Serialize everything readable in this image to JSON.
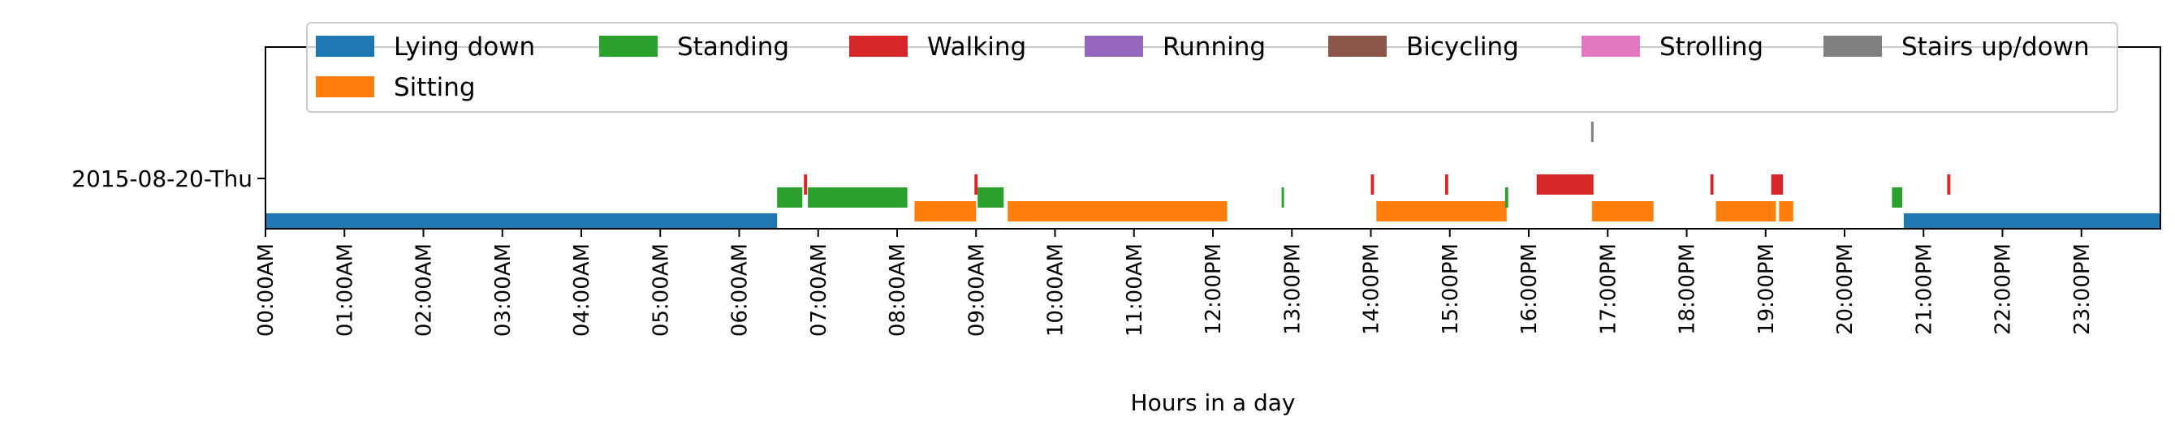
{
  "chart_data": {
    "type": "timeline",
    "xlabel": "Hours in a day",
    "xlim": [
      0,
      24
    ],
    "x_tick_labels": [
      "00:00AM",
      "01:00AM",
      "02:00AM",
      "03:00AM",
      "04:00AM",
      "05:00AM",
      "06:00AM",
      "07:00AM",
      "08:00AM",
      "09:00AM",
      "10:00AM",
      "11:00AM",
      "12:00PM",
      "13:00PM",
      "14:00PM",
      "15:00PM",
      "16:00PM",
      "17:00PM",
      "18:00PM",
      "19:00PM",
      "20:00PM",
      "21:00PM",
      "22:00PM",
      "23:00PM"
    ],
    "y_tick_labels": [
      "2015-08-20-Thu"
    ],
    "legend": {
      "placement": "top",
      "entries": [
        {
          "label": "Lying down",
          "color": "#1f77b4"
        },
        {
          "label": "Standing",
          "color": "#2ca02c"
        },
        {
          "label": "Walking",
          "color": "#d62728"
        },
        {
          "label": "Running",
          "color": "#9467bd"
        },
        {
          "label": "Bicycling",
          "color": "#8c564b"
        },
        {
          "label": "Strolling",
          "color": "#e377c2"
        },
        {
          "label": "Stairs up/down",
          "color": "#7f7f7f"
        },
        {
          "label": "Sitting",
          "color": "#ff7f0e"
        }
      ]
    },
    "series": [
      {
        "name": "Lying down",
        "color": "#1f77b4",
        "intervals": [
          [
            0.0,
            6.48
          ],
          [
            20.75,
            24.0
          ]
        ]
      },
      {
        "name": "Sitting",
        "color": "#ff7f0e",
        "intervals": [
          [
            8.22,
            9.0
          ],
          [
            9.4,
            12.18
          ],
          [
            14.07,
            15.72
          ],
          [
            16.8,
            17.58
          ],
          [
            18.37,
            19.13
          ],
          [
            19.17,
            19.35
          ]
        ]
      },
      {
        "name": "Standing",
        "color": "#2ca02c",
        "intervals": [
          [
            6.48,
            6.8
          ],
          [
            6.87,
            8.13
          ],
          [
            9.02,
            9.35
          ],
          [
            12.87,
            12.9
          ],
          [
            15.7,
            15.74
          ],
          [
            20.6,
            20.73
          ]
        ]
      },
      {
        "name": "Walking",
        "color": "#d62728",
        "intervals": [
          [
            6.82,
            6.86
          ],
          [
            8.98,
            9.02
          ],
          [
            14.0,
            14.04
          ],
          [
            14.94,
            14.98
          ],
          [
            16.1,
            16.82
          ],
          [
            18.3,
            18.34
          ],
          [
            19.07,
            19.22
          ],
          [
            21.3,
            21.34
          ]
        ]
      },
      {
        "name": "Running",
        "color": "#9467bd",
        "intervals": []
      },
      {
        "name": "Bicycling",
        "color": "#8c564b",
        "intervals": []
      },
      {
        "name": "Strolling",
        "color": "#e377c2",
        "intervals": []
      },
      {
        "name": "Stairs up/down",
        "color": "#7f7f7f",
        "intervals": [
          [
            16.79,
            16.81
          ]
        ]
      }
    ]
  }
}
